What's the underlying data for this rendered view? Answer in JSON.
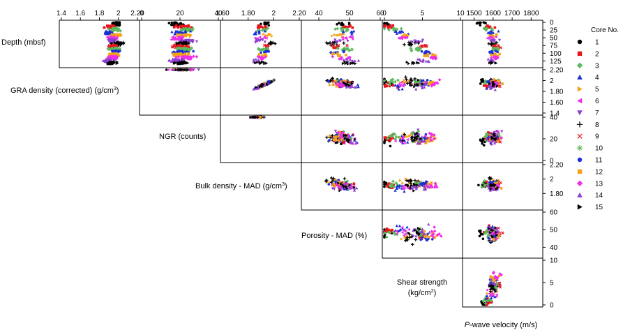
{
  "chart_data": {
    "type": "scatter",
    "title": "",
    "variables": [
      {
        "key": "depth",
        "label": "Depth (mbsf)",
        "range": [
          0,
          140
        ],
        "ticks": [
          "0",
          "25",
          "50",
          "75",
          "100",
          "125"
        ],
        "invert": true
      },
      {
        "key": "gra",
        "label": "GRA density (corrected) (g/cm",
        "label_sup": "3",
        "label_end": ")",
        "range": [
          1.4,
          2.2
        ],
        "ticks": [
          "1.4",
          "1.6",
          "1.8",
          "2",
          "2.20"
        ],
        "top_ticks": [
          "1.4",
          "1.6",
          "1.8",
          "2",
          "2.20"
        ],
        "right_ticks": [
          "1.4",
          "1.60",
          "1.80",
          "2",
          "2.20"
        ]
      },
      {
        "key": "ngr",
        "label": "NGR (counts)",
        "range": [
          0,
          40
        ],
        "ticks": [
          "0",
          "20",
          "40"
        ],
        "top_ticks": [
          "0",
          "20",
          "40"
        ],
        "right_ticks": [
          "0",
          "20",
          "40"
        ]
      },
      {
        "key": "mad_bulk",
        "label": "Bulk density - MAD (g/cm",
        "label_sup": "3",
        "label_end": ")",
        "range": [
          1.6,
          2.2
        ],
        "top_ticks": [
          "1.60",
          "1.80",
          "2",
          "2.20"
        ],
        "right_ticks": [
          "1.80",
          "2",
          "2.20"
        ]
      },
      {
        "key": "porosity",
        "label": "Porosity - MAD (%)",
        "range": [
          35,
          60
        ],
        "top_ticks": [
          "40",
          "50",
          "60"
        ],
        "right_ticks": [
          "40",
          "50",
          "60"
        ]
      },
      {
        "key": "shear",
        "label": "Shear strength (kg/cm",
        "label_sup": "2",
        "label_end": ")",
        "range": [
          0,
          10
        ],
        "top_ticks": [
          "0",
          "5",
          "10"
        ],
        "right_ticks": [
          "0",
          "5",
          "10"
        ]
      },
      {
        "key": "vp",
        "label": "P-wave velocity (m/s)",
        "range": [
          1450,
          1850
        ],
        "top_ticks": [
          "1500",
          "1600",
          "1700",
          "1800"
        ]
      }
    ],
    "shear_label_line1": "Shear strength",
    "shear_label_line2": "(kg/cm",
    "shear_label_sup": "2",
    "shear_label_end": ")",
    "vp_label_italic": "P",
    "vp_label_rest": "-wave velocity (m/s)",
    "legend": {
      "title": "Core No.",
      "placement": "right",
      "entries": [
        {
          "label": "1",
          "color": "#000000",
          "marker": "circle"
        },
        {
          "label": "2",
          "color": "#e8141c",
          "marker": "square"
        },
        {
          "label": "3",
          "color": "#5cb85c",
          "marker": "diamond"
        },
        {
          "label": "4",
          "color": "#1a2fd6",
          "marker": "triangle-up"
        },
        {
          "label": "5",
          "color": "#f5a21b",
          "marker": "triangle-right"
        },
        {
          "label": "6",
          "color": "#ee2ee8",
          "marker": "triangle-left"
        },
        {
          "label": "7",
          "color": "#8e3fd0",
          "marker": "triangle-down"
        },
        {
          "label": "8",
          "color": "#000000",
          "marker": "plus"
        },
        {
          "label": "9",
          "color": "#e8141c",
          "marker": "cross"
        },
        {
          "label": "10",
          "color": "#5cb85c",
          "marker": "star"
        },
        {
          "label": "11",
          "color": "#1a2fd6",
          "marker": "circle"
        },
        {
          "label": "12",
          "color": "#f5a21b",
          "marker": "square"
        },
        {
          "label": "13",
          "color": "#ee2ee8",
          "marker": "diamond"
        },
        {
          "label": "14",
          "color": "#8e3fd0",
          "marker": "triangle-up"
        },
        {
          "label": "15",
          "color": "#000000",
          "marker": "triangle-right"
        }
      ]
    },
    "cores": [
      {
        "core": 1,
        "depth": [
          0,
          10
        ],
        "gra": 1.98,
        "ngr": 18,
        "mad": 1.93,
        "por": 48,
        "shear": 0.3,
        "vp": 1545
      },
      {
        "core": 2,
        "depth": [
          10,
          19
        ],
        "gra": 1.92,
        "ngr": 21,
        "mad": 1.9,
        "por": 49,
        "shear": 0.6,
        "vp": 1580
      },
      {
        "core": 3,
        "depth": [
          19,
          28
        ],
        "gra": 1.96,
        "ngr": 23,
        "mad": 1.92,
        "por": 48,
        "shear": 1.2,
        "vp": 1570
      },
      {
        "core": 4,
        "depth": [
          28,
          38
        ],
        "gra": 1.9,
        "ngr": 20,
        "mad": 1.88,
        "por": 50,
        "shear": 2.0,
        "vp": 1590
      },
      {
        "core": 5,
        "depth": [
          38,
          47
        ],
        "gra": 1.97,
        "ngr": 22,
        "mad": 1.95,
        "por": 46,
        "shear": 3.0,
        "vp": 1600
      },
      {
        "core": 6,
        "depth": [
          47,
          56
        ],
        "gra": 1.94,
        "ngr": 19,
        "mad": 1.9,
        "por": 49,
        "shear": 2.5,
        "vp": 1595
      },
      {
        "core": 7,
        "depth": [
          56,
          65
        ],
        "gra": 1.93,
        "ngr": 24,
        "mad": 1.89,
        "por": 47,
        "shear": 4.0,
        "vp": 1610
      },
      {
        "core": 8,
        "depth": [
          65,
          74
        ],
        "gra": 2.0,
        "ngr": 21,
        "mad": 1.97,
        "por": 45,
        "shear": 3.5,
        "vp": 1600
      },
      {
        "core": 9,
        "depth": [
          74,
          83
        ],
        "gra": 1.95,
        "ngr": 20,
        "mad": 1.93,
        "por": 47,
        "shear": 5.0,
        "vp": 1620
      },
      {
        "core": 10,
        "depth": [
          83,
          92
        ],
        "gra": 1.96,
        "ngr": 22,
        "mad": 1.92,
        "por": 48,
        "shear": 4.5,
        "vp": 1605
      },
      {
        "core": 11,
        "depth": [
          92,
          101
        ],
        "gra": 1.97,
        "ngr": 21,
        "mad": 1.94,
        "por": 46,
        "shear": 5.5,
        "vp": 1600
      },
      {
        "core": 12,
        "depth": [
          101,
          110
        ],
        "gra": 1.95,
        "ngr": 20,
        "mad": 1.92,
        "por": 47,
        "shear": 6.0,
        "vp": 1615
      },
      {
        "core": 13,
        "depth": [
          110,
          119
        ],
        "gra": 1.94,
        "ngr": 23,
        "mad": 1.91,
        "por": 48,
        "shear": 6.5,
        "vp": 1610
      },
      {
        "core": 14,
        "depth": [
          119,
          128
        ],
        "gra": 1.9,
        "ngr": 19,
        "mad": 1.88,
        "por": 50,
        "shear": 5.0,
        "vp": 1595
      },
      {
        "core": 15,
        "depth": [
          128,
          135
        ],
        "gra": 1.93,
        "ngr": 21,
        "mad": 1.9,
        "por": 49,
        "shear": 4.0,
        "vp": 1600
      }
    ]
  }
}
